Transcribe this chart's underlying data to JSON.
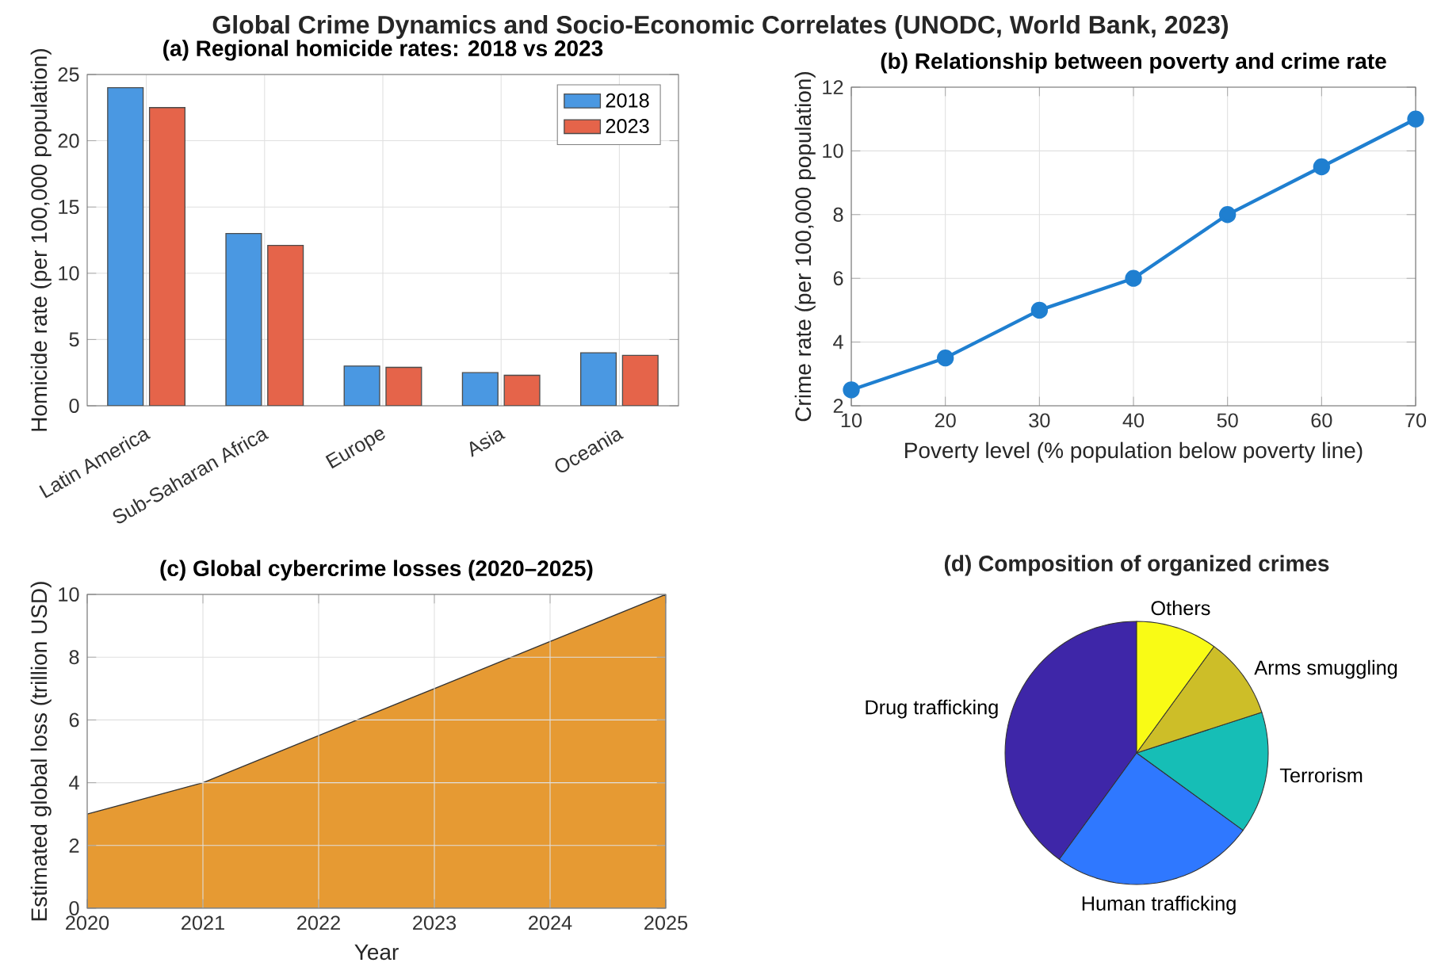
{
  "chart_data": [
    {
      "type": "other",
      "title": "Global Crime Dynamics and Socio-Economic Correlates (UNODC, World Bank, 2023)"
    },
    {
      "type": "bar",
      "title": "(a) Regional homicide rates: 2018 vs 2023",
      "ylabel": "Homicide rate (per 100,000 population)",
      "categories": [
        "Latin America",
        "Sub-Saharan Africa",
        "Europe",
        "Asia",
        "Oceania"
      ],
      "series": [
        {
          "name": "2018",
          "color": "#4a98e2",
          "values": [
            24,
            13,
            3,
            2.5,
            4
          ]
        },
        {
          "name": "2023",
          "color": "#e5644a",
          "values": [
            22.5,
            12.1,
            2.9,
            2.3,
            3.8
          ]
        }
      ],
      "ylim": [
        0,
        25
      ],
      "yticks": [
        0,
        5,
        10,
        15,
        20,
        25
      ],
      "grid": true,
      "legend": "top right"
    },
    {
      "type": "line",
      "title": "(b) Relationship between poverty and crime rate",
      "xlabel": "Poverty level (% population below poverty line)",
      "ylabel": "Crime rate (per 100,000 population)",
      "x": [
        10,
        20,
        30,
        40,
        50,
        60,
        70
      ],
      "values": [
        2.5,
        3.5,
        5,
        6,
        8,
        9.5,
        11
      ],
      "color": "#1f7fd0",
      "xlim": [
        10,
        70
      ],
      "xticks": [
        10,
        20,
        30,
        40,
        50,
        60,
        70
      ],
      "ylim": [
        2,
        12
      ],
      "yticks": [
        2,
        4,
        6,
        8,
        10,
        12
      ],
      "grid": true,
      "marker": "circle"
    },
    {
      "type": "area",
      "title": "(c) Global cybercrime losses (2020–2025)",
      "xlabel": "Year",
      "ylabel": "Estimated global loss (trillion USD)",
      "x": [
        2020,
        2021,
        2022,
        2023,
        2024,
        2025
      ],
      "values": [
        3,
        4,
        5.5,
        7,
        8.5,
        10
      ],
      "color": "#e69a33",
      "xlim": [
        2020,
        2025
      ],
      "xticks": [
        2020,
        2021,
        2022,
        2023,
        2024,
        2025
      ],
      "ylim": [
        0,
        10
      ],
      "yticks": [
        0,
        2,
        4,
        6,
        8,
        10
      ],
      "grid": true
    },
    {
      "type": "pie",
      "title": "(d) Composition of organized crimes",
      "categories": [
        "Drug trafficking",
        "Human trafficking",
        "Terrorism",
        "Arms smuggling",
        "Others"
      ],
      "values": [
        40,
        25,
        15,
        10,
        10
      ],
      "colors": [
        "#3e26a8",
        "#2f78ff",
        "#16beb6",
        "#cdbe28",
        "#f9fb15"
      ]
    }
  ]
}
